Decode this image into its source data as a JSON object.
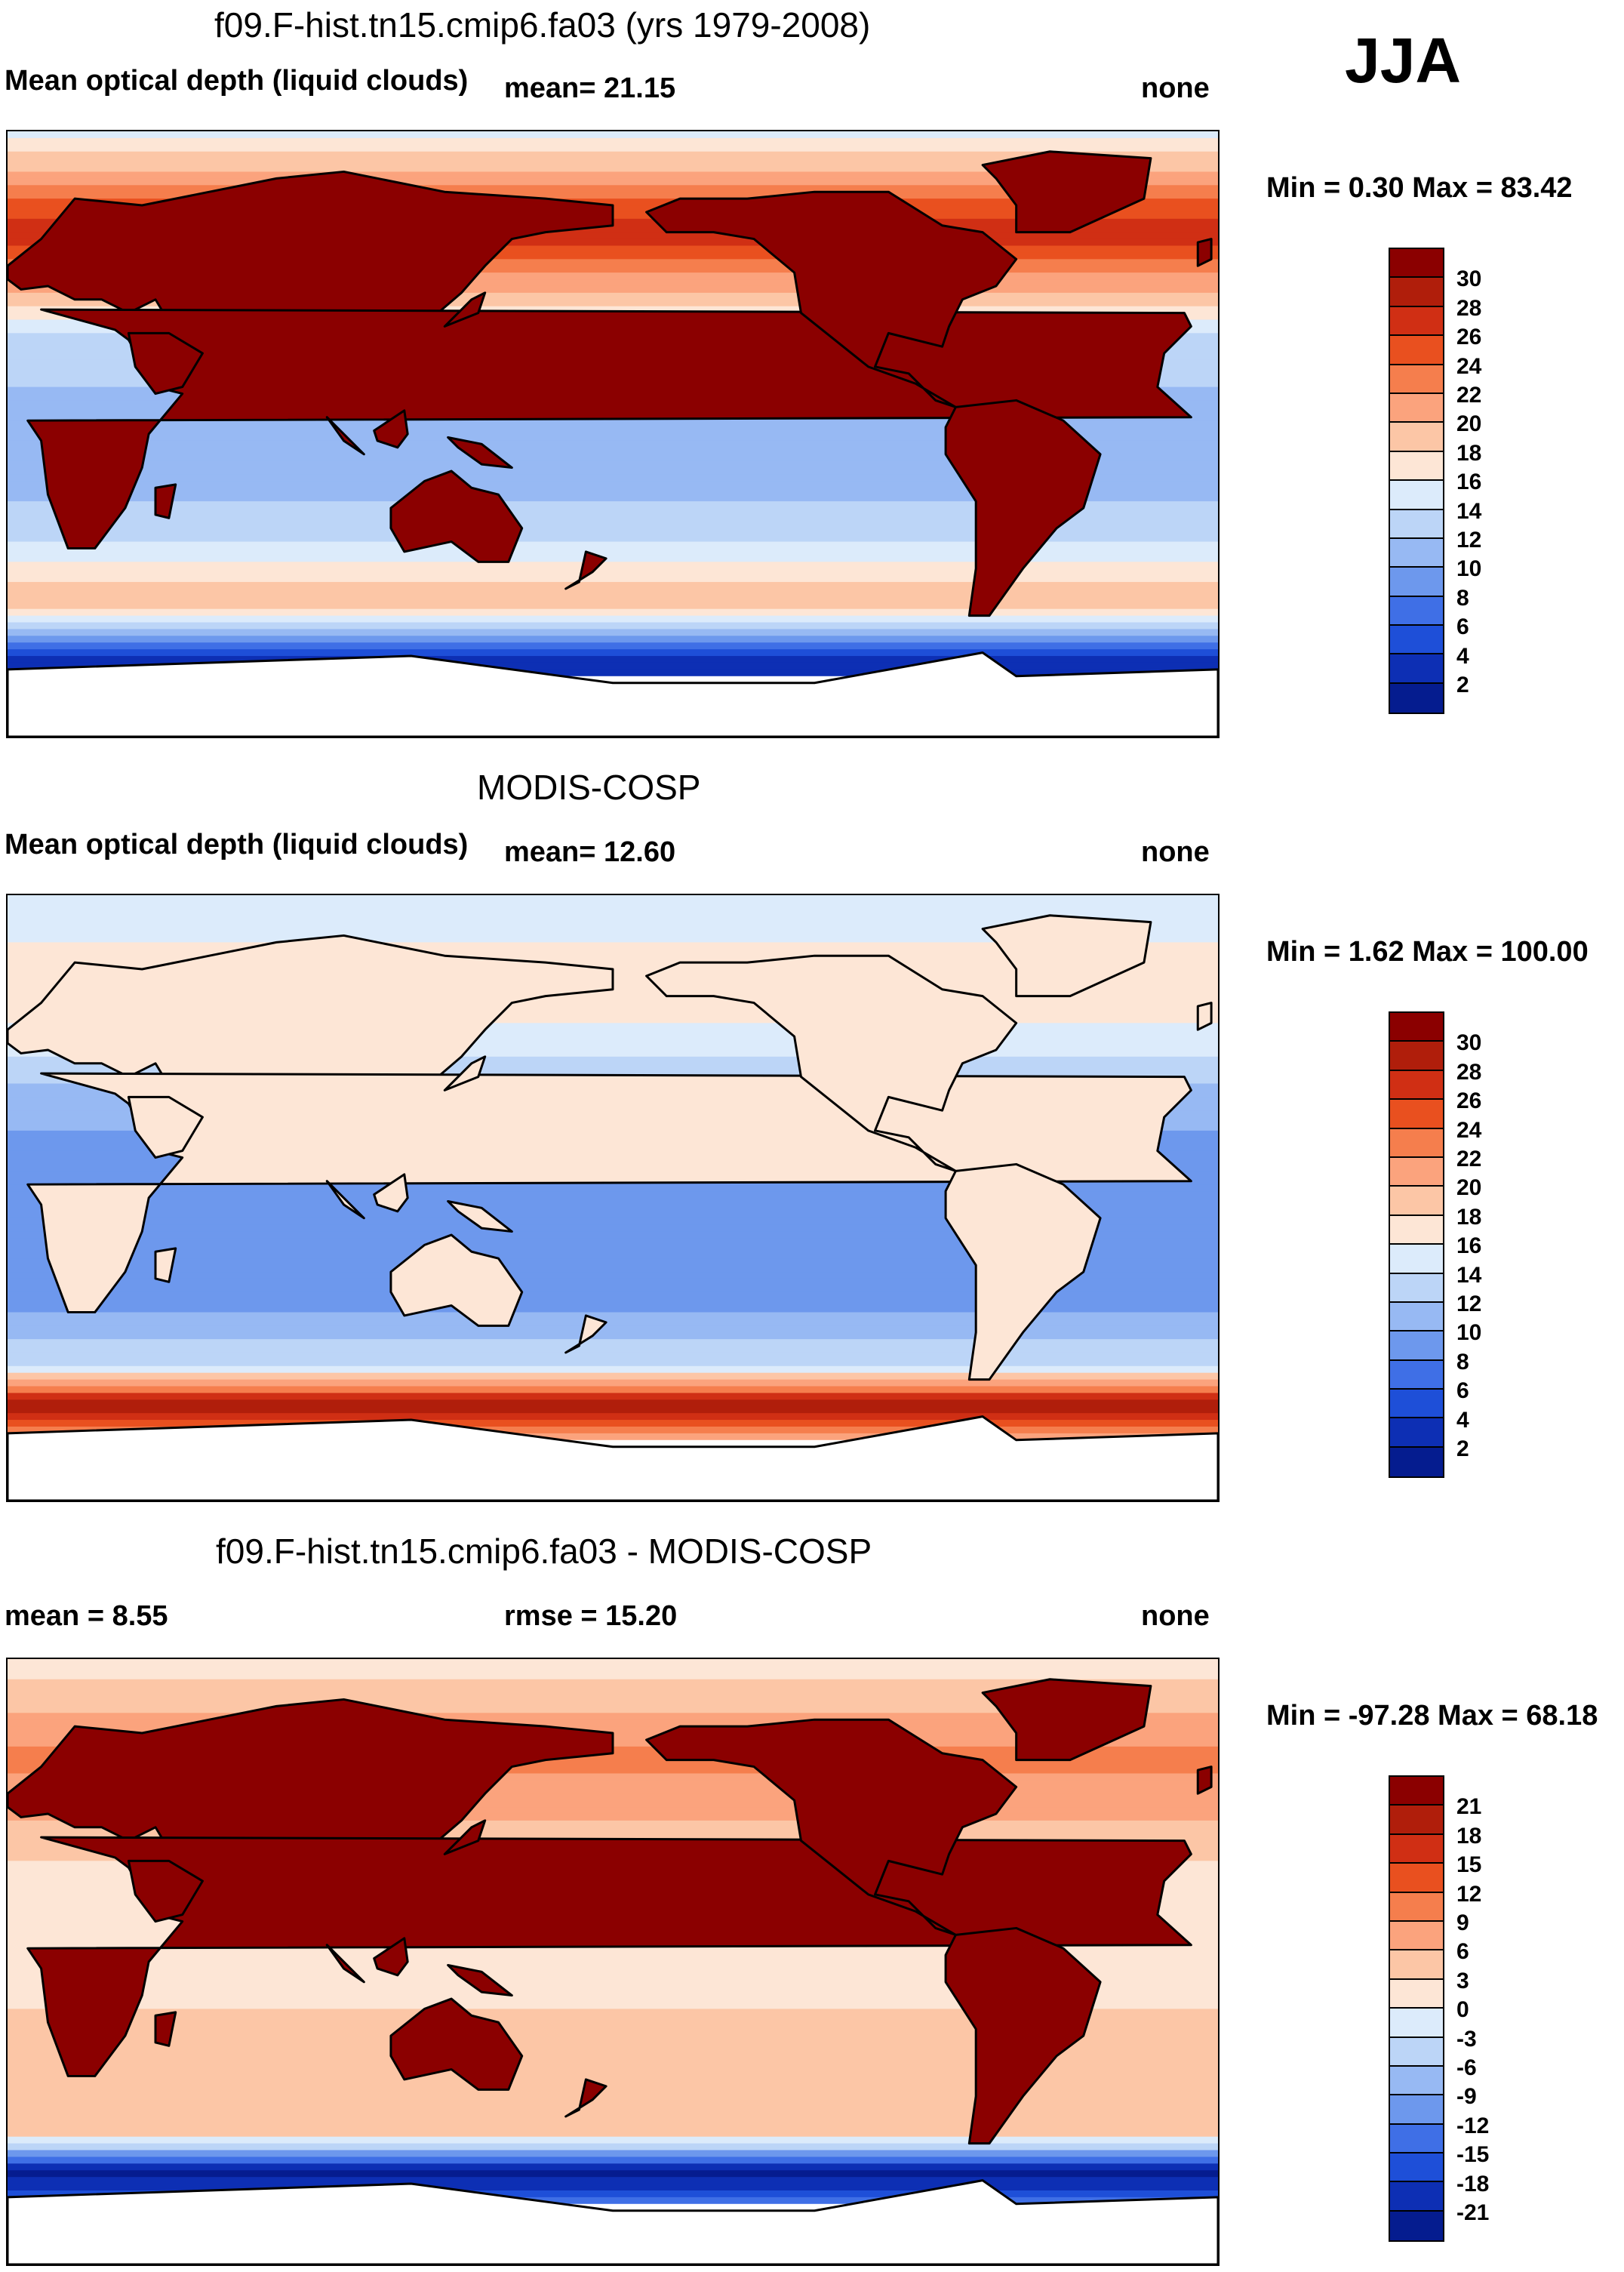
{
  "season": "JJA",
  "panels": [
    {
      "title": "f09.F-hist.tn15.cmip6.fa03 (yrs 1979-2008)",
      "left_label": "Mean optical depth (liquid clouds)",
      "center_label": "mean=  21.15",
      "right_label": "none",
      "minmax": "Min =   0.30 Max =  83.42",
      "colorbar": {
        "ticks": [
          "30",
          "28",
          "26",
          "24",
          "22",
          "20",
          "18",
          "16",
          "14",
          "12",
          "10",
          "8",
          "6",
          "4",
          "2"
        ],
        "colors": [
          "#8b0000",
          "#b01e0b",
          "#d02f14",
          "#e9501f",
          "#f57e4d",
          "#fba37d",
          "#fcc6a6",
          "#fde6d6",
          "#dcebfb",
          "#bcd5f7",
          "#97b9f3",
          "#6d98ed",
          "#3f6fe6",
          "#1e4fd8",
          "#0d2fb4",
          "#051c8f"
        ]
      },
      "chart_data": {
        "type": "contour-map",
        "variable": "Mean optical depth (liquid clouds)",
        "area_mean": 21.15,
        "min": 0.3,
        "max": 83.42,
        "units": "none",
        "contour_levels": [
          2,
          4,
          6,
          8,
          10,
          12,
          14,
          16,
          18,
          20,
          22,
          24,
          26,
          28,
          30
        ],
        "zonal_profile": [
          {
            "lat": 90,
            "value": 15
          },
          {
            "lat": 60,
            "value": 28
          },
          {
            "lat": 30,
            "value": 14
          },
          {
            "lat": 0,
            "value": 10
          },
          {
            "lat": -30,
            "value": 13
          },
          {
            "lat": -50,
            "value": 20
          },
          {
            "lat": -65,
            "value": 4
          },
          {
            "lat": -90,
            "value": 0
          }
        ],
        "land_value": 31
      }
    },
    {
      "title": "MODIS-COSP",
      "left_label": "Mean optical depth (liquid clouds)",
      "center_label": "mean=  12.60",
      "right_label": "none",
      "minmax": "Min =   1.62 Max = 100.00",
      "colorbar": {
        "ticks": [
          "30",
          "28",
          "26",
          "24",
          "22",
          "20",
          "18",
          "16",
          "14",
          "12",
          "10",
          "8",
          "6",
          "4",
          "2"
        ],
        "colors": [
          "#8b0000",
          "#b01e0b",
          "#d02f14",
          "#e9501f",
          "#f57e4d",
          "#fba37d",
          "#fcc6a6",
          "#fde6d6",
          "#dcebfb",
          "#bcd5f7",
          "#97b9f3",
          "#6d98ed",
          "#3f6fe6",
          "#1e4fd8",
          "#0d2fb4",
          "#051c8f"
        ]
      },
      "chart_data": {
        "type": "contour-map",
        "variable": "Mean optical depth (liquid clouds)",
        "area_mean": 12.6,
        "min": 1.62,
        "max": 100.0,
        "units": "none",
        "contour_levels": [
          2,
          4,
          6,
          8,
          10,
          12,
          14,
          16,
          18,
          20,
          22,
          24,
          26,
          28,
          30
        ],
        "zonal_profile": [
          {
            "lat": 90,
            "value": 14
          },
          {
            "lat": 60,
            "value": 18
          },
          {
            "lat": 30,
            "value": 11
          },
          {
            "lat": 0,
            "value": 8
          },
          {
            "lat": -30,
            "value": 9
          },
          {
            "lat": -50,
            "value": 14
          },
          {
            "lat": -62,
            "value": 30
          },
          {
            "lat": -90,
            "value": 0
          }
        ],
        "land_value": 17
      }
    },
    {
      "title": "f09.F-hist.tn15.cmip6.fa03 - MODIS-COSP",
      "left_label": "mean =   8.55",
      "center_label": "rmse =  15.20",
      "right_label": "none",
      "minmax": "Min = -97.28 Max =  68.18",
      "colorbar": {
        "ticks": [
          "21",
          "18",
          "15",
          "12",
          "9",
          "6",
          "3",
          "0",
          "-3",
          "-6",
          "-9",
          "-12",
          "-15",
          "-18",
          "-21"
        ],
        "colors": [
          "#8b0000",
          "#b01e0b",
          "#d02f14",
          "#e9501f",
          "#f57e4d",
          "#fba37d",
          "#fcc6a6",
          "#fde6d6",
          "#dcebfb",
          "#bcd5f7",
          "#97b9f3",
          "#6d98ed",
          "#3f6fe6",
          "#1e4fd8",
          "#0d2fb4",
          "#051c8f"
        ]
      },
      "chart_data": {
        "type": "contour-map",
        "variable": "f09.F-hist.tn15.cmip6.fa03 - MODIS-COSP",
        "area_mean": 8.55,
        "rmse": 15.2,
        "min": -97.28,
        "max": 68.18,
        "units": "none",
        "contour_levels": [
          -21,
          -18,
          -15,
          -12,
          -9,
          -6,
          -3,
          0,
          3,
          6,
          9,
          12,
          15,
          18,
          21
        ],
        "zonal_profile": [
          {
            "lat": 90,
            "value": 1
          },
          {
            "lat": 60,
            "value": 10
          },
          {
            "lat": 30,
            "value": 3
          },
          {
            "lat": 0,
            "value": 2
          },
          {
            "lat": -30,
            "value": 4
          },
          {
            "lat": -50,
            "value": 6
          },
          {
            "lat": -62,
            "value": -22
          },
          {
            "lat": -90,
            "value": 0
          }
        ],
        "land_value": 22
      }
    }
  ]
}
